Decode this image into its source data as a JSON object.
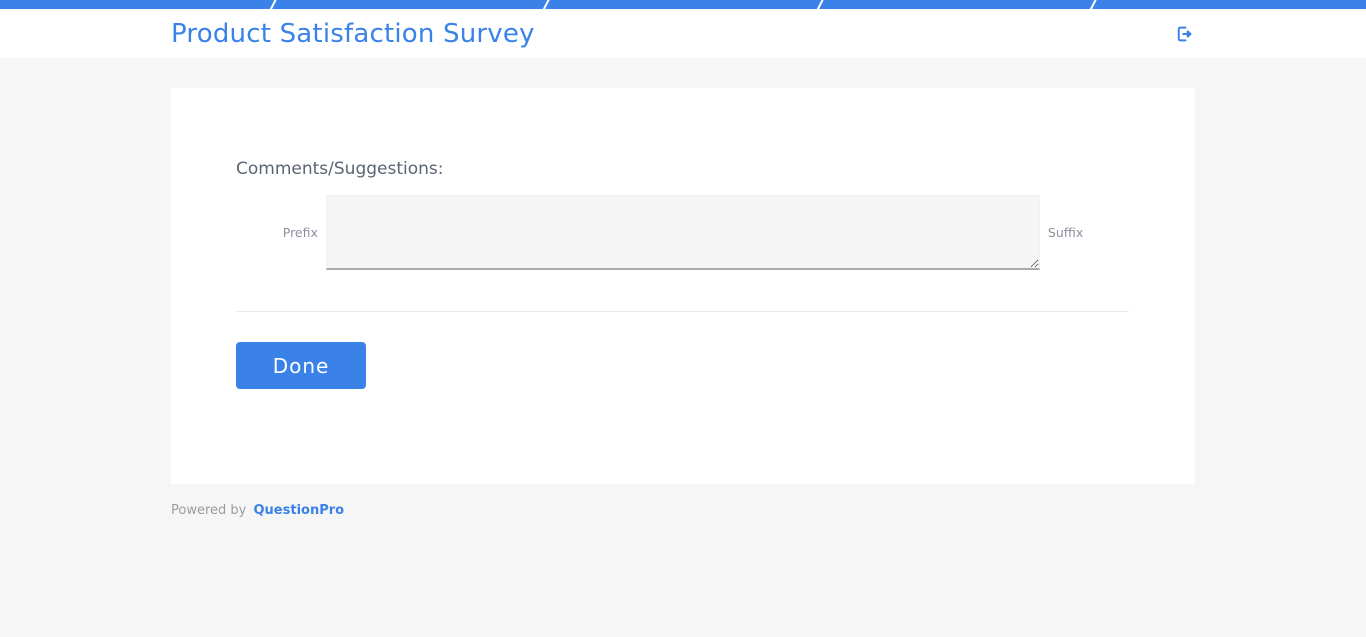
{
  "progress_bar": {
    "segments": 5,
    "filled_color": "#3a82e8",
    "separator_color": "#ffffff"
  },
  "header": {
    "title": "Product Satisfaction Survey",
    "exit_icon": "sign-out-icon"
  },
  "survey": {
    "question_label": "Comments/Suggestions:",
    "prefix_label": "Prefix",
    "suffix_label": "Suffix",
    "textarea_value": "",
    "textarea_placeholder": "",
    "done_label": "Done"
  },
  "footer": {
    "powered_by": "Powered by",
    "brand": "QuestionPro"
  },
  "colors": {
    "accent": "#3a82e8",
    "page_background": "#f6f6f7",
    "card_background": "#ffffff",
    "question_text": "#5b6472",
    "affix_text": "#8a919e",
    "textarea_background": "#f5f5f6",
    "textarea_underline": "#a8abb0",
    "divider": "#ebebec",
    "footer_text": "#9b9b9b"
  }
}
